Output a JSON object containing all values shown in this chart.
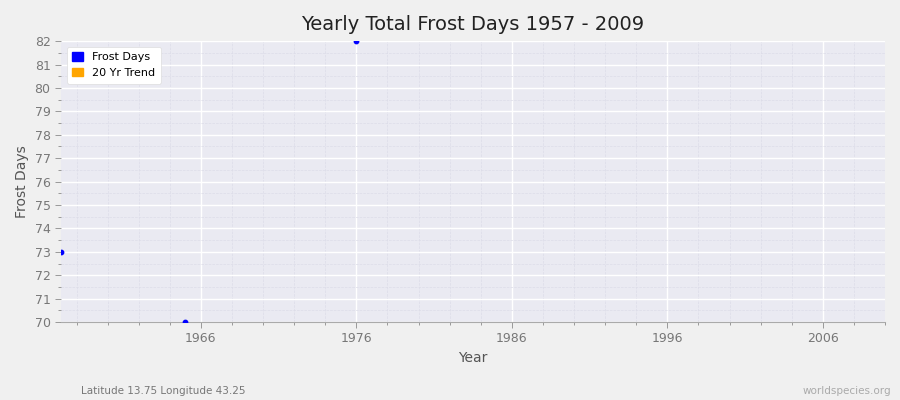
{
  "title": "Yearly Total Frost Days 1957 - 2009",
  "xlabel": "Year",
  "ylabel": "Frost Days",
  "subtitle": "Latitude 13.75 Longitude 43.25",
  "watermark": "worldspecies.org",
  "ylim": [
    70,
    82
  ],
  "xlim": [
    1957,
    2010
  ],
  "yticks": [
    70,
    71,
    72,
    73,
    74,
    75,
    76,
    77,
    78,
    79,
    80,
    81,
    82
  ],
  "xticks": [
    1966,
    1976,
    1986,
    1996,
    2006
  ],
  "frost_days_color": "#0000ff",
  "trend_color": "#ffa500",
  "fig_bg_color": "#f0f0f0",
  "plot_bg_color": "#eaeaf2",
  "major_grid_color": "#ffffff",
  "minor_grid_color": "#dcdce8",
  "data_points": [
    {
      "year": 1957,
      "value": 73
    },
    {
      "year": 1965,
      "value": 70
    },
    {
      "year": 1976,
      "value": 82
    }
  ],
  "legend_labels": [
    "Frost Days",
    "20 Yr Trend"
  ],
  "legend_colors": [
    "#0000ff",
    "#ffa500"
  ],
  "tick_label_color": "#777777",
  "axis_label_color": "#555555",
  "title_color": "#222222",
  "spine_color": "#aaaaaa"
}
